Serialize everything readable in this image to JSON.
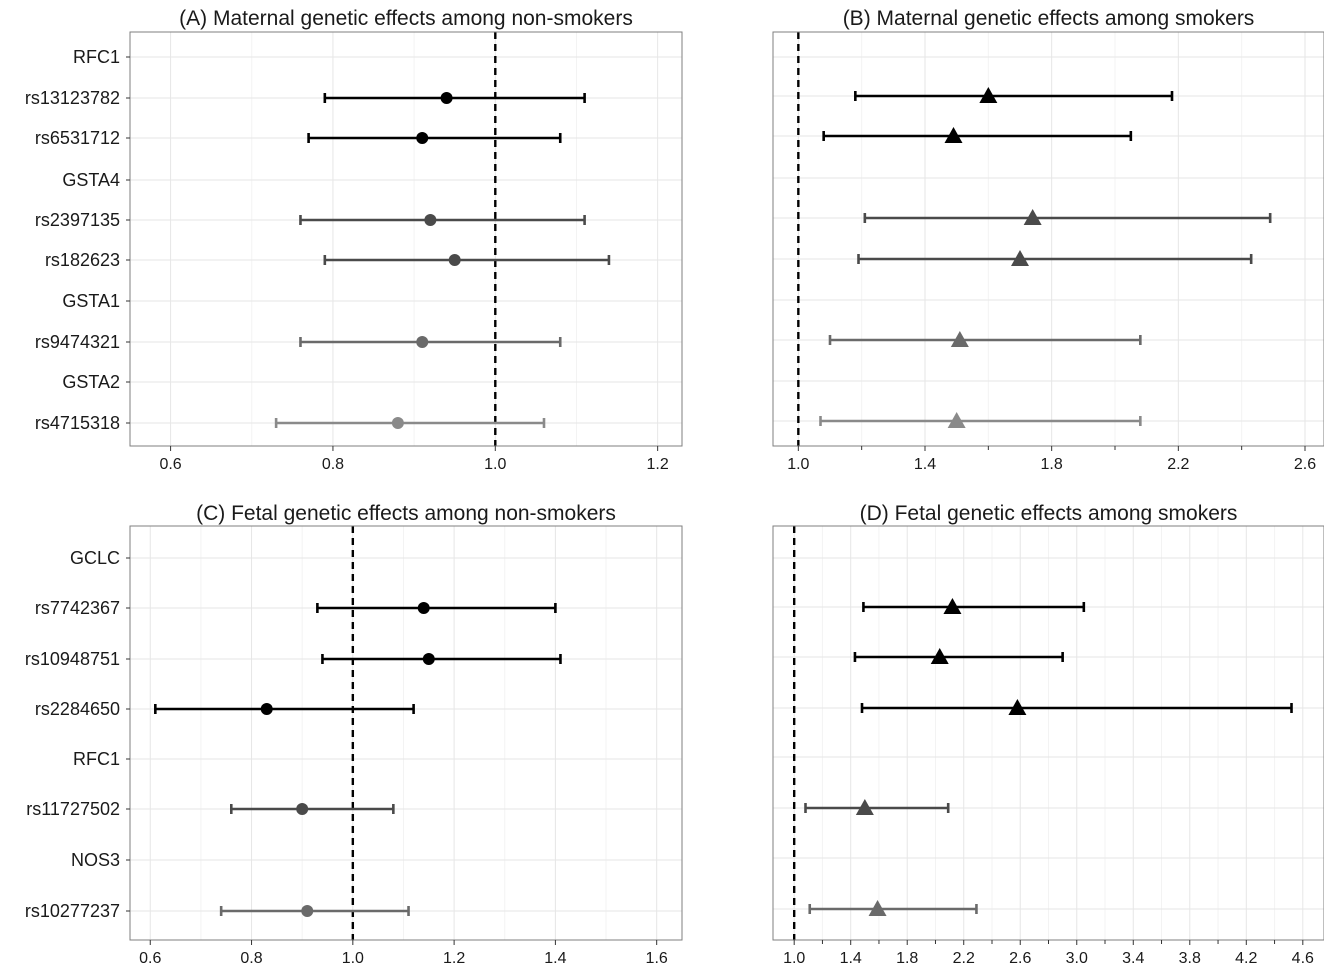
{
  "chart_data": [
    {
      "type": "scatter",
      "title": "(A) Maternal genetic effects among non-smokers",
      "xlabel": "",
      "ylabel": "",
      "xlim": [
        0.55,
        1.23
      ],
      "xticks": [
        "0.6",
        "0.8",
        "1.0",
        "1.2"
      ],
      "reference_line": 1.0,
      "grid": true,
      "marker": "circle",
      "rows": [
        {
          "label": "RFC1",
          "header": true
        },
        {
          "label": "rs13123782",
          "est": 0.94,
          "lo": 0.79,
          "hi": 1.11,
          "shade": "#000000"
        },
        {
          "label": "rs6531712",
          "est": 0.91,
          "lo": 0.77,
          "hi": 1.08,
          "shade": "#000000"
        },
        {
          "label": "GSTA4",
          "header": true
        },
        {
          "label": "rs2397135",
          "est": 0.92,
          "lo": 0.76,
          "hi": 1.11,
          "shade": "#4a4a4a"
        },
        {
          "label": "rs182623",
          "est": 0.95,
          "lo": 0.79,
          "hi": 1.14,
          "shade": "#4a4a4a"
        },
        {
          "label": "GSTA1",
          "header": true
        },
        {
          "label": "rs9474321",
          "est": 0.91,
          "lo": 0.76,
          "hi": 1.08,
          "shade": "#6a6a6a"
        },
        {
          "label": "GSTA2",
          "header": true
        },
        {
          "label": "rs4715318",
          "est": 0.88,
          "lo": 0.73,
          "hi": 1.06,
          "shade": "#8a8a8a"
        }
      ]
    },
    {
      "type": "scatter",
      "title": "(B) Maternal genetic effects among smokers",
      "xlabel": "",
      "ylabel": "",
      "xlim": [
        0.92,
        2.66
      ],
      "xticks": [
        "1.0",
        "1.4",
        "1.8",
        "2.2",
        "2.6"
      ],
      "reference_line": 1.0,
      "grid": true,
      "marker": "triangle",
      "rows": [
        {
          "label": "RFC1",
          "header": true
        },
        {
          "label": "rs13123782",
          "est": 1.6,
          "lo": 1.18,
          "hi": 2.18,
          "shade": "#000000"
        },
        {
          "label": "rs6531712",
          "est": 1.49,
          "lo": 1.08,
          "hi": 2.05,
          "shade": "#000000"
        },
        {
          "label": "GSTA4",
          "header": true
        },
        {
          "label": "rs2397135",
          "est": 1.74,
          "lo": 1.21,
          "hi": 2.49,
          "shade": "#4a4a4a"
        },
        {
          "label": "rs182623",
          "est": 1.7,
          "lo": 1.19,
          "hi": 2.43,
          "shade": "#4a4a4a"
        },
        {
          "label": "GSTA1",
          "header": true
        },
        {
          "label": "rs9474321",
          "est": 1.51,
          "lo": 1.1,
          "hi": 2.08,
          "shade": "#6a6a6a"
        },
        {
          "label": "GSTA2",
          "header": true
        },
        {
          "label": "rs4715318",
          "est": 1.5,
          "lo": 1.07,
          "hi": 2.08,
          "shade": "#8a8a8a"
        }
      ]
    },
    {
      "type": "scatter",
      "title": "(C) Fetal genetic effects among non-smokers",
      "xlabel": "",
      "ylabel": "",
      "xlim": [
        0.56,
        1.65
      ],
      "xticks": [
        "0.6",
        "0.8",
        "1.0",
        "1.2",
        "1.4",
        "1.6"
      ],
      "reference_line": 1.0,
      "grid": true,
      "marker": "circle",
      "rows": [
        {
          "label": "GCLC",
          "header": true
        },
        {
          "label": "rs7742367",
          "est": 1.14,
          "lo": 0.93,
          "hi": 1.4,
          "shade": "#000000"
        },
        {
          "label": "rs10948751",
          "est": 1.15,
          "lo": 0.94,
          "hi": 1.41,
          "shade": "#000000"
        },
        {
          "label": "rs2284650",
          "est": 0.83,
          "lo": 0.61,
          "hi": 1.12,
          "shade": "#000000"
        },
        {
          "label": "RFC1",
          "header": true
        },
        {
          "label": "rs11727502",
          "est": 0.9,
          "lo": 0.76,
          "hi": 1.08,
          "shade": "#4a4a4a"
        },
        {
          "label": "NOS3",
          "header": true
        },
        {
          "label": "rs10277237",
          "est": 0.91,
          "lo": 0.74,
          "hi": 1.11,
          "shade": "#6a6a6a"
        }
      ]
    },
    {
      "type": "scatter",
      "title": "(D) Fetal genetic effects among smokers",
      "xlabel": "",
      "ylabel": "",
      "xlim": [
        0.85,
        4.75
      ],
      "xticks": [
        "1.0",
        "1.4",
        "1.8",
        "2.2",
        "2.6",
        "3.0",
        "3.4",
        "3.8",
        "4.2",
        "4.6"
      ],
      "reference_line": 1.0,
      "grid": true,
      "marker": "triangle",
      "rows": [
        {
          "label": "GCLC",
          "header": true
        },
        {
          "label": "rs7742367",
          "est": 2.12,
          "lo": 1.49,
          "hi": 3.05,
          "shade": "#000000"
        },
        {
          "label": "rs10948751",
          "est": 2.03,
          "lo": 1.43,
          "hi": 2.9,
          "shade": "#000000"
        },
        {
          "label": "rs2284650",
          "est": 2.58,
          "lo": 1.48,
          "hi": 4.52,
          "shade": "#000000"
        },
        {
          "label": "RFC1",
          "header": true
        },
        {
          "label": "rs11727502",
          "est": 1.5,
          "lo": 1.08,
          "hi": 2.09,
          "shade": "#4a4a4a"
        },
        {
          "label": "NOS3",
          "header": true
        },
        {
          "label": "rs10277237",
          "est": 1.59,
          "lo": 1.11,
          "hi": 2.29,
          "shade": "#6a6a6a"
        }
      ]
    }
  ]
}
